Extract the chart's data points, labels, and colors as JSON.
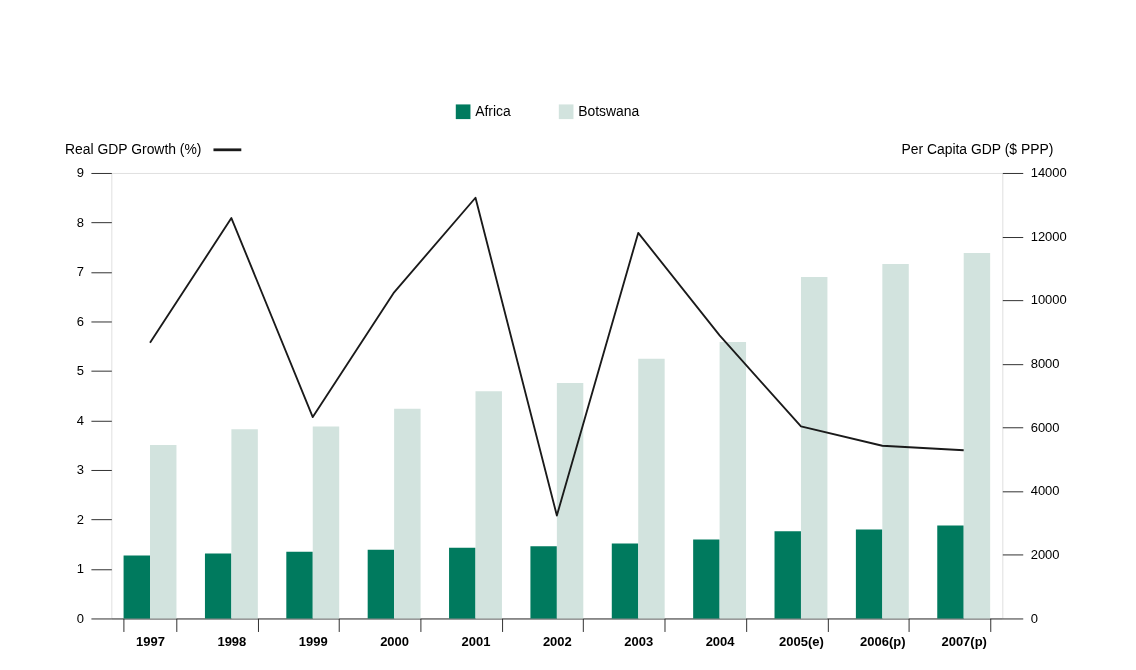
{
  "chart_data": {
    "type": "bar",
    "ylabel": "Real GDP Growth (%)",
    "y2label": "Per Capita GDP ($ PPP)",
    "categories": [
      "1997",
      "1998",
      "1999",
      "2000",
      "2001",
      "2002",
      "2003",
      "2004",
      "2005(e)",
      "2006(p)",
      "2007(p)"
    ],
    "series": [
      {
        "name": "Africa",
        "color": "#007a5e",
        "axis": "y2",
        "values": [
          1980,
          2040,
          2100,
          2160,
          2220,
          2270,
          2360,
          2480,
          2740,
          2800,
          2920
        ]
      },
      {
        "name": "Botswana",
        "color": "#d2e3de",
        "axis": "y2",
        "values": [
          5450,
          5950,
          6030,
          6590,
          7140,
          7400,
          8160,
          8690,
          10730,
          11140,
          11490
        ]
      },
      {
        "type": "line",
        "color": "#1a1a1a",
        "axis": "y",
        "values": [
          5.57,
          8.09,
          4.07,
          6.59,
          8.5,
          2.08,
          7.79,
          5.72,
          3.88,
          3.49,
          3.4
        ]
      }
    ],
    "ylim": [
      0,
      9
    ],
    "yticks": [
      0,
      1,
      2,
      3,
      4,
      5,
      6,
      7,
      8,
      9
    ],
    "y2lim": [
      0,
      14000
    ],
    "y2ticks": [
      0,
      2000,
      4000,
      6000,
      8000,
      10000,
      12000,
      14000
    ],
    "legend": "top",
    "grid": false
  }
}
